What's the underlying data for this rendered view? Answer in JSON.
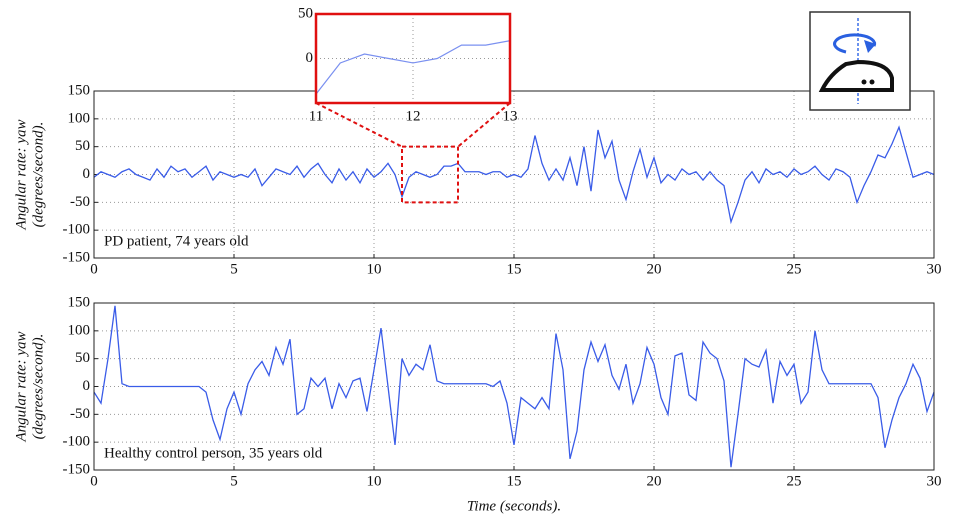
{
  "chart_data": [
    {
      "type": "line",
      "ylabel": [
        "Angular rate: yaw",
        "(degrees/second)."
      ],
      "annotation": "PD patient, 74 years old",
      "color": "#3a5ce8",
      "grid": true,
      "xlim": [
        0,
        30
      ],
      "xticks": [
        0,
        5,
        10,
        15,
        20,
        25,
        30
      ],
      "ylim": [
        -150,
        150
      ],
      "yticks": [
        -150,
        -100,
        -50,
        0,
        50,
        100,
        150
      ],
      "x": [
        0,
        0.25,
        0.5,
        0.75,
        1,
        1.25,
        1.5,
        1.75,
        2,
        2.25,
        2.5,
        2.75,
        3,
        3.25,
        3.5,
        3.75,
        4,
        4.25,
        4.5,
        4.75,
        5,
        5.25,
        5.5,
        5.75,
        6,
        6.25,
        6.5,
        6.75,
        7,
        7.25,
        7.5,
        7.75,
        8,
        8.25,
        8.5,
        8.75,
        9,
        9.25,
        9.5,
        9.75,
        10,
        10.25,
        10.5,
        10.75,
        11,
        11.25,
        11.5,
        11.75,
        12,
        12.25,
        12.5,
        12.75,
        13,
        13.25,
        13.5,
        13.75,
        14,
        14.25,
        14.5,
        14.75,
        15,
        15.25,
        15.5,
        15.75,
        16,
        16.25,
        16.5,
        16.75,
        17,
        17.25,
        17.5,
        17.75,
        18,
        18.25,
        18.5,
        18.75,
        19,
        19.25,
        19.5,
        19.75,
        20,
        20.25,
        20.5,
        20.75,
        21,
        21.25,
        21.5,
        21.75,
        22,
        22.25,
        22.5,
        22.75,
        23,
        23.25,
        23.5,
        23.75,
        24,
        24.25,
        24.5,
        24.75,
        25,
        25.25,
        25.5,
        25.75,
        26,
        26.25,
        26.5,
        26.75,
        27,
        27.25,
        27.5,
        27.75,
        28,
        28.25,
        28.5,
        28.75,
        29,
        29.25,
        29.5,
        29.75,
        30
      ],
      "values": [
        -5,
        5,
        0,
        -5,
        5,
        10,
        0,
        -5,
        -10,
        10,
        -5,
        15,
        5,
        10,
        -5,
        5,
        15,
        -10,
        5,
        0,
        -5,
        0,
        -5,
        10,
        -20,
        -5,
        10,
        5,
        0,
        15,
        -5,
        10,
        20,
        0,
        -15,
        10,
        -10,
        5,
        -15,
        10,
        -5,
        5,
        20,
        0,
        -40,
        -5,
        5,
        0,
        -5,
        0,
        15,
        15,
        20,
        5,
        5,
        5,
        0,
        5,
        5,
        -5,
        0,
        -5,
        10,
        70,
        20,
        -10,
        10,
        -10,
        30,
        -20,
        50,
        -30,
        80,
        30,
        60,
        -10,
        -45,
        5,
        45,
        -5,
        30,
        -15,
        0,
        -10,
        10,
        0,
        5,
        -10,
        5,
        -10,
        -20,
        -85,
        -50,
        -10,
        5,
        -15,
        10,
        0,
        5,
        -5,
        10,
        0,
        5,
        15,
        0,
        -10,
        10,
        5,
        -5,
        -50,
        -20,
        5,
        35,
        30,
        55,
        85,
        40,
        -5,
        0,
        5,
        0
      ],
      "inset": {
        "xlim": [
          11,
          13
        ],
        "xticks": [
          11,
          12,
          13
        ],
        "ylim": [
          -50,
          50
        ],
        "yticks": [
          0,
          50
        ]
      }
    },
    {
      "type": "line",
      "ylabel": [
        "Angular rate: yaw",
        "(degrees/second)."
      ],
      "annotation": "Healthy control person, 35 years old",
      "xlabel": "Time (seconds).",
      "color": "#3a5ce8",
      "grid": true,
      "xlim": [
        0,
        30
      ],
      "xticks": [
        0,
        5,
        10,
        15,
        20,
        25,
        30
      ],
      "ylim": [
        -150,
        150
      ],
      "yticks": [
        -150,
        -100,
        -50,
        0,
        50,
        100,
        150
      ],
      "x": [
        0,
        0.25,
        0.5,
        0.75,
        1,
        1.25,
        1.5,
        1.75,
        2,
        2.25,
        2.5,
        2.75,
        3,
        3.25,
        3.5,
        3.75,
        4,
        4.25,
        4.5,
        4.75,
        5,
        5.25,
        5.5,
        5.75,
        6,
        6.25,
        6.5,
        6.75,
        7,
        7.25,
        7.5,
        7.75,
        8,
        8.25,
        8.5,
        8.75,
        9,
        9.25,
        9.5,
        9.75,
        10,
        10.25,
        10.5,
        10.75,
        11,
        11.25,
        11.5,
        11.75,
        12,
        12.25,
        12.5,
        12.75,
        13,
        13.25,
        13.5,
        13.75,
        14,
        14.25,
        14.5,
        14.75,
        15,
        15.25,
        15.5,
        15.75,
        16,
        16.25,
        16.5,
        16.75,
        17,
        17.25,
        17.5,
        17.75,
        18,
        18.25,
        18.5,
        18.75,
        19,
        19.25,
        19.5,
        19.75,
        20,
        20.25,
        20.5,
        20.75,
        21,
        21.25,
        21.5,
        21.75,
        22,
        22.25,
        22.5,
        22.75,
        23,
        23.25,
        23.5,
        23.75,
        24,
        24.25,
        24.5,
        24.75,
        25,
        25.25,
        25.5,
        25.75,
        26,
        26.25,
        26.5,
        26.75,
        27,
        27.25,
        27.5,
        27.75,
        28,
        28.25,
        28.5,
        28.75,
        29,
        29.25,
        29.5,
        29.75,
        30
      ],
      "values": [
        -10,
        -30,
        50,
        145,
        5,
        0,
        0,
        0,
        0,
        0,
        0,
        0,
        0,
        0,
        0,
        0,
        -10,
        -60,
        -95,
        -40,
        -10,
        -50,
        5,
        30,
        45,
        20,
        70,
        40,
        85,
        -50,
        -40,
        15,
        0,
        15,
        -40,
        5,
        -20,
        10,
        15,
        -45,
        30,
        105,
        0,
        -105,
        50,
        20,
        40,
        30,
        75,
        10,
        5,
        5,
        5,
        5,
        5,
        5,
        5,
        0,
        10,
        -30,
        -105,
        -20,
        -30,
        -40,
        -20,
        -40,
        95,
        30,
        -130,
        -80,
        30,
        80,
        45,
        75,
        20,
        -5,
        40,
        -30,
        5,
        70,
        40,
        -20,
        -50,
        55,
        60,
        -15,
        -25,
        80,
        60,
        50,
        10,
        -145,
        -50,
        50,
        40,
        35,
        65,
        -30,
        45,
        20,
        40,
        -30,
        -10,
        100,
        30,
        5,
        5,
        5,
        5,
        5,
        5,
        5,
        -20,
        -110,
        -60,
        -20,
        5,
        40,
        15,
        -45,
        -10
      ]
    }
  ]
}
